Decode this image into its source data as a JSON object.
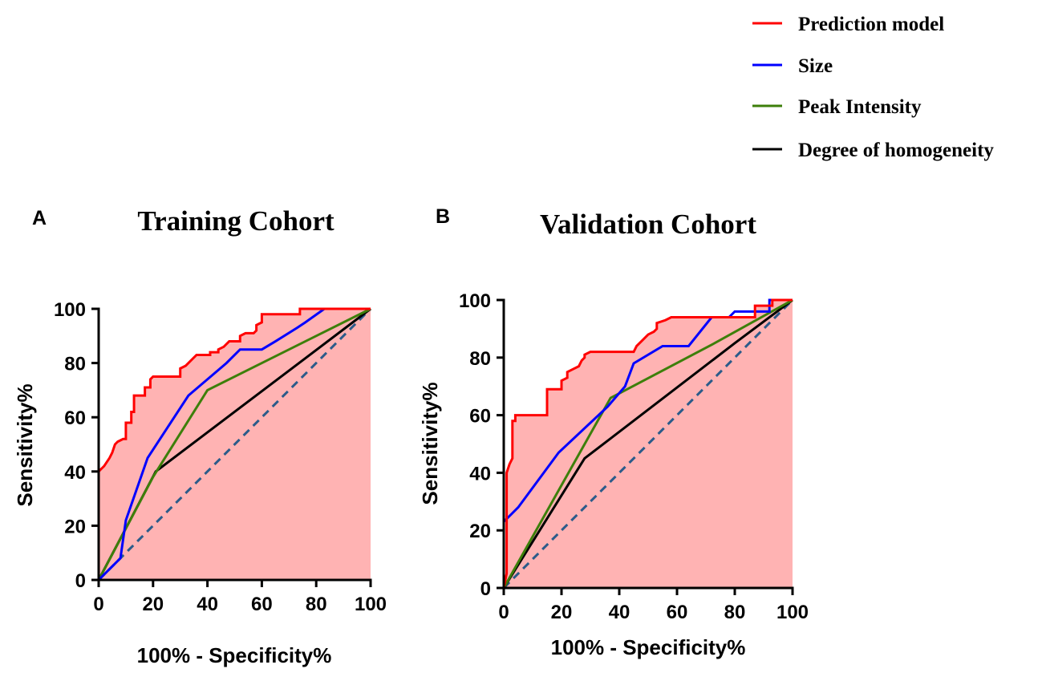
{
  "legend": {
    "placement": "top-right",
    "items": [
      {
        "label": "Prediction model",
        "color": "#ff0000",
        "dashed": false
      },
      {
        "label": "Size",
        "color": "#0000ff",
        "dashed": false
      },
      {
        "label": "Peak Intensity",
        "color": "#3d7f0a",
        "dashed": false
      },
      {
        "label": "Degree of homogeneity",
        "color": "#000000",
        "dashed": false
      }
    ]
  },
  "fill_color": "#ffb3b3",
  "reference_color": "#2b5b8a",
  "chart_data": [
    {
      "type": "line",
      "panel_label": "A",
      "title": "Training Cohort",
      "xlabel": "100% - Specificity%",
      "ylabel": "Sensitivity%",
      "xlim": [
        0,
        100
      ],
      "ylim": [
        0,
        100
      ],
      "xticks": [
        "0",
        "20",
        "40",
        "60",
        "80",
        "100"
      ],
      "yticks": [
        "0",
        "20",
        "40",
        "60",
        "80",
        "100"
      ],
      "grid": false,
      "reference_line": [
        [
          0,
          0
        ],
        [
          100,
          100
        ]
      ],
      "shaded_area_under": "Prediction model",
      "series": [
        {
          "name": "Prediction model",
          "color": "#ff0000",
          "points": [
            [
              0,
              0
            ],
            [
              0,
              40
            ],
            [
              2,
              42
            ],
            [
              4,
              45
            ],
            [
              5,
              47
            ],
            [
              6,
              50
            ],
            [
              7,
              51
            ],
            [
              9,
              52
            ],
            [
              10,
              52
            ],
            [
              10,
              58
            ],
            [
              12,
              58
            ],
            [
              12,
              62
            ],
            [
              13,
              62
            ],
            [
              13,
              68
            ],
            [
              17,
              68
            ],
            [
              17,
              71
            ],
            [
              19,
              71
            ],
            [
              19,
              74
            ],
            [
              20,
              75
            ],
            [
              30,
              75
            ],
            [
              30,
              78
            ],
            [
              32,
              79
            ],
            [
              34,
              81
            ],
            [
              35,
              82
            ],
            [
              36,
              83
            ],
            [
              41,
              83
            ],
            [
              41,
              84
            ],
            [
              44,
              84
            ],
            [
              44,
              85
            ],
            [
              46,
              86
            ],
            [
              48,
              88
            ],
            [
              52,
              88
            ],
            [
              52,
              90
            ],
            [
              54,
              91
            ],
            [
              57,
              91
            ],
            [
              58,
              92
            ],
            [
              58,
              94
            ],
            [
              60,
              95
            ],
            [
              60,
              98
            ],
            [
              65,
              98
            ],
            [
              74,
              98
            ],
            [
              74,
              100
            ],
            [
              100,
              100
            ]
          ]
        },
        {
          "name": "Size",
          "color": "#0000ff",
          "points": [
            [
              0,
              0
            ],
            [
              8,
              8
            ],
            [
              10,
              22
            ],
            [
              18,
              45
            ],
            [
              33,
              68
            ],
            [
              47,
              80
            ],
            [
              52,
              85
            ],
            [
              60,
              85
            ],
            [
              65,
              88
            ],
            [
              73,
              93
            ],
            [
              76,
              95
            ],
            [
              83,
              100
            ],
            [
              100,
              100
            ]
          ]
        },
        {
          "name": "Peak Intensity",
          "color": "#3d7f0a",
          "points": [
            [
              0,
              0
            ],
            [
              20,
              38
            ],
            [
              40,
              70
            ],
            [
              100,
              100
            ]
          ]
        },
        {
          "name": "Degree of homogeneity",
          "color": "#000000",
          "points": [
            [
              0,
              0
            ],
            [
              21,
              40
            ],
            [
              100,
              100
            ]
          ]
        }
      ]
    },
    {
      "type": "line",
      "panel_label": "B",
      "title": "Validation Cohort",
      "xlabel": "100% - Specificity%",
      "ylabel": "Sensitivity%",
      "xlim": [
        0,
        100
      ],
      "ylim": [
        0,
        100
      ],
      "xticks": [
        "0",
        "20",
        "40",
        "60",
        "80",
        "100"
      ],
      "yticks": [
        "0",
        "20",
        "40",
        "60",
        "80",
        "100"
      ],
      "grid": false,
      "reference_line": [
        [
          0,
          0
        ],
        [
          100,
          100
        ]
      ],
      "shaded_area_under": "Prediction model",
      "series": [
        {
          "name": "Prediction model",
          "color": "#ff0000",
          "points": [
            [
              0,
              0
            ],
            [
              1,
              5
            ],
            [
              1,
              40
            ],
            [
              2,
              43
            ],
            [
              3,
              45
            ],
            [
              3,
              58
            ],
            [
              4,
              58
            ],
            [
              4,
              60
            ],
            [
              15,
              60
            ],
            [
              15,
              69
            ],
            [
              20,
              69
            ],
            [
              20,
              72
            ],
            [
              22,
              73
            ],
            [
              22,
              75
            ],
            [
              24,
              76
            ],
            [
              26,
              77
            ],
            [
              27,
              79
            ],
            [
              28,
              80
            ],
            [
              28,
              81
            ],
            [
              30,
              82
            ],
            [
              38,
              82
            ],
            [
              45,
              82
            ],
            [
              46,
              84
            ],
            [
              48,
              86
            ],
            [
              50,
              88
            ],
            [
              52,
              89
            ],
            [
              53,
              90
            ],
            [
              53,
              92
            ],
            [
              56,
              93
            ],
            [
              58,
              94
            ],
            [
              60,
              94
            ],
            [
              87,
              94
            ],
            [
              87,
              98
            ],
            [
              93,
              98
            ],
            [
              93,
              100
            ],
            [
              100,
              100
            ]
          ]
        },
        {
          "name": "Size",
          "color": "#0000ff",
          "points": [
            [
              0,
              0
            ],
            [
              0,
              23
            ],
            [
              5,
              28
            ],
            [
              19,
              47
            ],
            [
              36,
              63
            ],
            [
              42,
              70
            ],
            [
              45,
              78
            ],
            [
              55,
              84
            ],
            [
              64,
              84
            ],
            [
              72,
              94
            ],
            [
              78,
              94
            ],
            [
              80,
              96
            ],
            [
              92,
              96
            ],
            [
              92,
              100
            ],
            [
              100,
              100
            ]
          ]
        },
        {
          "name": "Peak Intensity",
          "color": "#3d7f0a",
          "points": [
            [
              0,
              0
            ],
            [
              37,
              66
            ],
            [
              73,
              85
            ],
            [
              100,
              100
            ]
          ]
        },
        {
          "name": "Degree of homogeneity",
          "color": "#000000",
          "points": [
            [
              0,
              0
            ],
            [
              28,
              45
            ],
            [
              80,
              85
            ],
            [
              100,
              100
            ]
          ]
        }
      ]
    }
  ]
}
